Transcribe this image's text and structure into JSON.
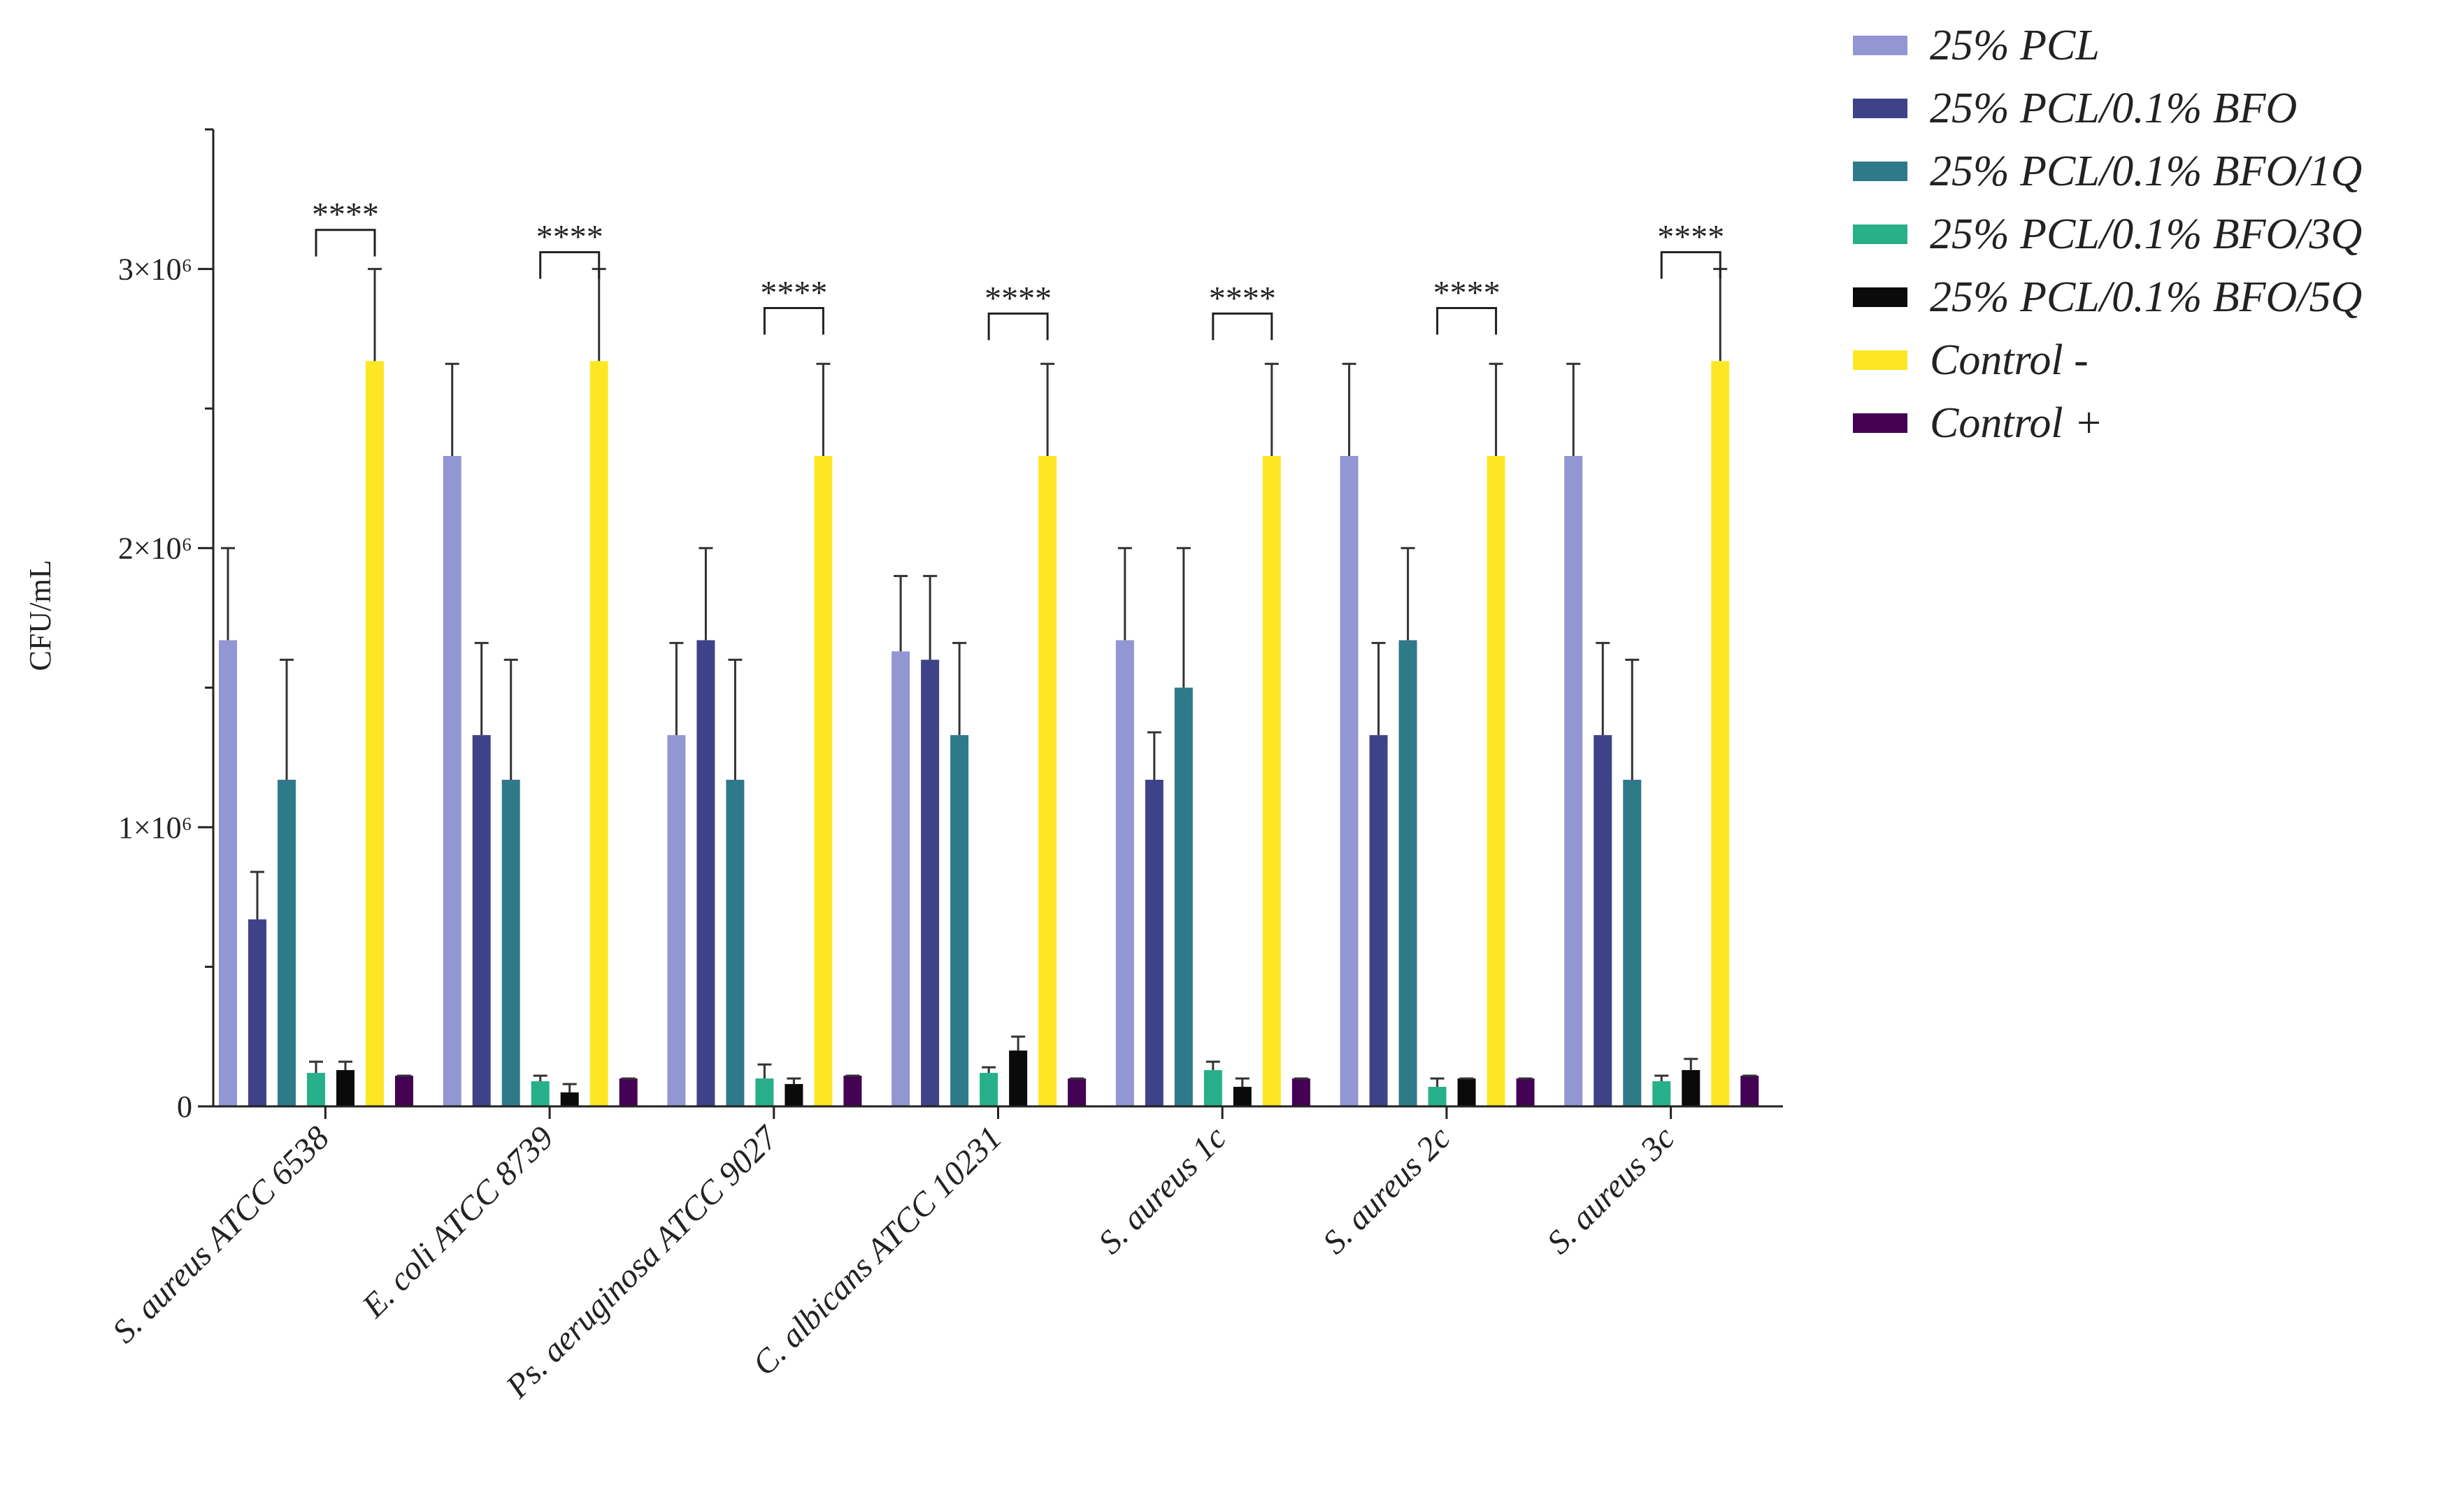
{
  "chart_data": {
    "type": "bar",
    "title": "",
    "xlabel": "",
    "ylabel": "CFU/mL",
    "ylim": [
      0,
      3500000
    ],
    "yticks": [
      {
        "value": 0,
        "label": "0"
      },
      {
        "value": 1000000,
        "label": "1×10⁶"
      },
      {
        "value": 2000000,
        "label": "2×10⁶"
      },
      {
        "value": 3000000,
        "label": "3×10⁶"
      }
    ],
    "categories": [
      "S. aureus ATCC 6538",
      "E. coli ATCC 8739",
      "Ps. aeruginosa ATCC 9027",
      "C. albicans ATCC 10231",
      "S. aureus 1c",
      "S. aureus 2c",
      "S. aureus 3c"
    ],
    "series": [
      {
        "name": "25% PCL",
        "color": "#9296d3",
        "values": [
          1670000,
          2330000,
          1330000,
          1630000,
          1670000,
          2330000,
          2330000
        ],
        "errors": [
          330000,
          330000,
          330000,
          270000,
          330000,
          330000,
          330000
        ]
      },
      {
        "name": "25% PCL/0.1% BFO",
        "color": "#3e4389",
        "values": [
          670000,
          1330000,
          1670000,
          1600000,
          1170000,
          1330000,
          1330000
        ],
        "errors": [
          170000,
          330000,
          330000,
          300000,
          170000,
          330000,
          330000
        ]
      },
      {
        "name": "25% PCL/0.1% BFO/1Q",
        "color": "#2f7a8a",
        "values": [
          1170000,
          1170000,
          1170000,
          1330000,
          1500000,
          1670000,
          1170000
        ],
        "errors": [
          430000,
          430000,
          430000,
          330000,
          500000,
          330000,
          430000
        ]
      },
      {
        "name": "25% PCL/0.1% BFO/3Q",
        "color": "#27b08a",
        "values": [
          120000,
          90000,
          100000,
          120000,
          130000,
          70000,
          90000
        ],
        "errors": [
          40000,
          20000,
          50000,
          20000,
          30000,
          30000,
          20000
        ]
      },
      {
        "name": "25% PCL/0.1% BFO/5Q",
        "color": "#0a0a0a",
        "values": [
          130000,
          50000,
          80000,
          200000,
          70000,
          100000,
          130000
        ],
        "errors": [
          30000,
          30000,
          20000,
          50000,
          30000,
          0,
          40000
        ]
      },
      {
        "name": "Control -",
        "color": "#fde725",
        "values": [
          2670000,
          2670000,
          2330000,
          2330000,
          2330000,
          2330000,
          2670000
        ],
        "errors": [
          330000,
          330000,
          330000,
          330000,
          330000,
          330000,
          330000
        ]
      },
      {
        "name": "Control +",
        "color": "#440154",
        "values": [
          110000,
          100000,
          110000,
          100000,
          100000,
          100000,
          110000
        ],
        "errors": [
          0,
          0,
          0,
          0,
          0,
          0,
          0
        ]
      }
    ],
    "significance": [
      {
        "category": 0,
        "from_series": 3,
        "to_series": 5,
        "label": "****",
        "level": 3140000
      },
      {
        "category": 1,
        "from_series": 3,
        "to_series": 5,
        "label": "****",
        "level": 3060000
      },
      {
        "category": 2,
        "from_series": 3,
        "to_series": 5,
        "label": "****",
        "level": 2860000
      },
      {
        "category": 3,
        "from_series": 3,
        "to_series": 5,
        "label": "****",
        "level": 2840000
      },
      {
        "category": 4,
        "from_series": 3,
        "to_series": 5,
        "label": "****",
        "level": 2840000
      },
      {
        "category": 5,
        "from_series": 3,
        "to_series": 5,
        "label": "****",
        "level": 2860000
      },
      {
        "category": 6,
        "from_series": 3,
        "to_series": 5,
        "label": "****",
        "level": 3060000
      }
    ],
    "legend_position": "top-right"
  }
}
